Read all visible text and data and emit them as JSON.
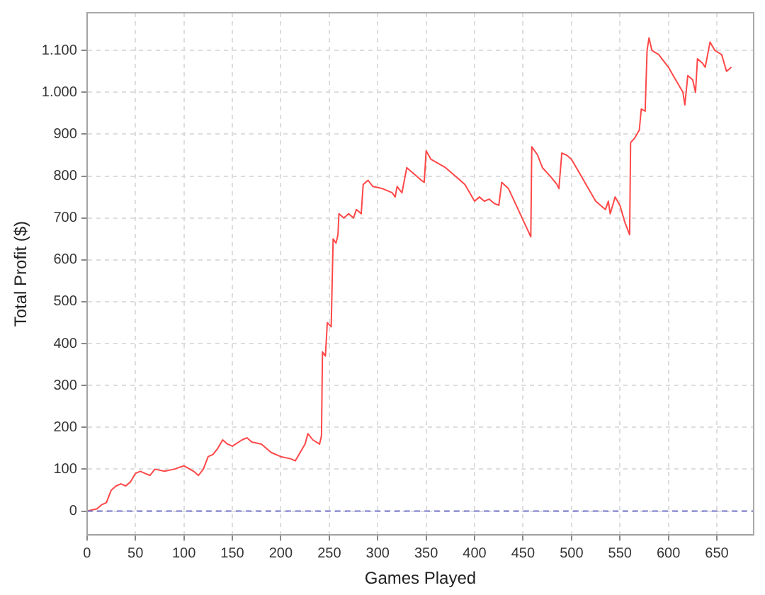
{
  "chart_data": {
    "type": "line",
    "xlabel": "Games Played",
    "ylabel": "Total Profit ($)",
    "x": [
      0,
      10,
      15,
      20,
      25,
      30,
      35,
      40,
      45,
      50,
      55,
      60,
      65,
      70,
      80,
      90,
      100,
      110,
      115,
      120,
      125,
      130,
      135,
      140,
      145,
      150,
      160,
      165,
      170,
      180,
      190,
      200,
      210,
      215,
      220,
      225,
      228,
      233,
      240,
      242,
      243,
      246,
      248,
      252,
      254,
      257,
      259,
      260,
      265,
      270,
      275,
      278,
      283,
      285,
      290,
      295,
      305,
      315,
      318,
      320,
      325,
      330,
      335,
      340,
      345,
      348,
      350,
      355,
      370,
      380,
      390,
      395,
      400,
      405,
      410,
      415,
      420,
      425,
      428,
      435,
      445,
      455,
      458,
      459,
      465,
      470,
      478,
      485,
      487,
      490,
      495,
      500,
      510,
      520,
      525,
      530,
      535,
      538,
      540,
      545,
      550,
      555,
      560,
      561,
      565,
      570,
      572,
      576,
      578,
      580,
      583,
      590,
      600,
      605,
      610,
      615,
      617,
      620,
      625,
      628,
      630,
      635,
      638,
      643,
      648,
      655,
      660,
      665
    ],
    "series": [
      {
        "color": "#ff4848",
        "values": [
          0,
          5,
          15,
          20,
          50,
          60,
          65,
          60,
          70,
          90,
          95,
          90,
          85,
          100,
          95,
          100,
          108,
          95,
          85,
          100,
          130,
          135,
          150,
          170,
          160,
          155,
          170,
          175,
          165,
          160,
          140,
          130,
          125,
          120,
          140,
          160,
          185,
          170,
          160,
          180,
          380,
          370,
          450,
          440,
          650,
          640,
          660,
          710,
          700,
          710,
          700,
          720,
          710,
          780,
          790,
          775,
          770,
          760,
          750,
          775,
          760,
          820,
          810,
          800,
          790,
          785,
          860,
          840,
          820,
          800,
          780,
          760,
          740,
          750,
          740,
          745,
          735,
          730,
          785,
          770,
          720,
          670,
          655,
          870,
          850,
          820,
          800,
          780,
          770,
          855,
          850,
          840,
          800,
          760,
          740,
          730,
          720,
          740,
          710,
          750,
          730,
          690,
          660,
          880,
          890,
          910,
          960,
          955,
          1100,
          1130,
          1100,
          1090,
          1060,
          1040,
          1020,
          1000,
          970,
          1040,
          1030,
          1000,
          1080,
          1070,
          1060,
          1120,
          1100,
          1090,
          1050,
          1060
        ]
      }
    ],
    "xlim": [
      0,
      688
    ],
    "xticks": [
      0,
      50,
      100,
      150,
      200,
      250,
      300,
      350,
      400,
      450,
      500,
      550,
      600,
      650
    ],
    "ylim": [
      -57,
      1190
    ],
    "yticks": [
      0,
      100,
      200,
      300,
      400,
      500,
      600,
      700,
      800,
      900,
      {
        "value": 1000,
        "label": "1.000"
      },
      {
        "value": 1100,
        "label": "1.100"
      }
    ],
    "grid": true,
    "legend": false,
    "marker": "none",
    "line_style": "solid",
    "ref_lines": [
      {
        "axis": "y",
        "value": 0,
        "color": "#7777cc",
        "line_style": "dashed"
      }
    ]
  }
}
